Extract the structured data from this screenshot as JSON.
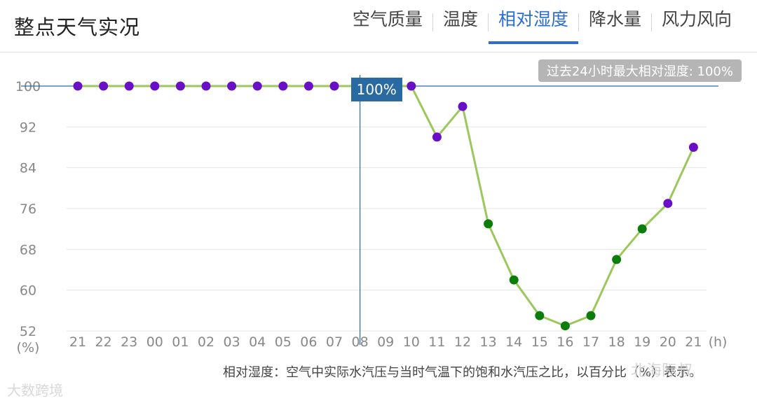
{
  "header": {
    "title": "整点天气实况",
    "tabs": [
      {
        "label": "空气质量",
        "active": false
      },
      {
        "label": "温度",
        "active": false
      },
      {
        "label": "相对湿度",
        "active": true
      },
      {
        "label": "降水量",
        "active": false
      },
      {
        "label": "风力风向",
        "active": false
      }
    ]
  },
  "max_badge": "过去24小时最大相对湿度: 100%",
  "tooltip": {
    "label": "100%",
    "category": "08"
  },
  "description": "相对湿度：空气中实际水汽压与当时气温下的饱和水汽压之比，以百分比（%）表示。",
  "watermarks": {
    "right": "北海际叔",
    "left": "大数跨境"
  },
  "colors": {
    "line": "#9bc85a",
    "point_high": "#6a0fc7",
    "point_low": "#0b7d0b",
    "cursor": "#2a6aa3",
    "accent": "#2a6fcf"
  },
  "chart_data": {
    "type": "line",
    "categories": [
      "21",
      "22",
      "23",
      "00",
      "01",
      "02",
      "03",
      "04",
      "05",
      "06",
      "07",
      "08",
      "09",
      "10",
      "11",
      "12",
      "13",
      "14",
      "15",
      "16",
      "17",
      "18",
      "19",
      "20",
      "21"
    ],
    "series": [
      {
        "values": [
          100,
          100,
          100,
          100,
          100,
          100,
          100,
          100,
          100,
          100,
          100,
          null,
          null,
          100,
          90,
          96,
          73,
          62,
          55,
          53,
          55,
          66,
          72,
          77,
          88
        ]
      }
    ],
    "ylabel": "(%)",
    "xlabel": "(h)",
    "yticks": [
      100,
      92,
      84,
      76,
      68,
      60,
      52
    ],
    "ylim": [
      52,
      100
    ],
    "grid": true,
    "point_color_rule": "values >= 77 purple, below green"
  }
}
